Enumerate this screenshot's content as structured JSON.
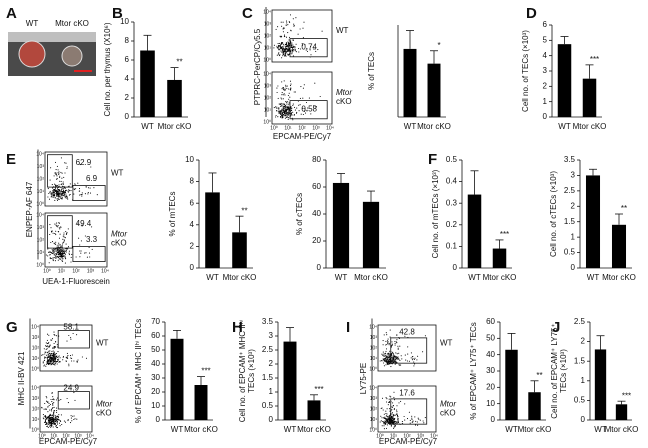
{
  "panel_labels": [
    "A",
    "B",
    "C",
    "D",
    "E",
    "F",
    "G",
    "H",
    "I",
    "J"
  ],
  "photo": {
    "samples": [
      "WT",
      "Mtor cKO"
    ]
  },
  "flow_ticks": [
    "10⁰",
    "10¹",
    "10²",
    "10³",
    "10⁴"
  ],
  "flow_plots": [
    {
      "y_label": "PTPRC-PerCP/Cy5.5",
      "x_label": "EPCAM-PE/Cy7",
      "plots": [
        {
          "gates": [
            0.74
          ],
          "sample": [
            "WT"
          ]
        },
        {
          "gates": [
            0.58
          ],
          "sample": [
            "Mtor",
            "cKO"
          ]
        }
      ]
    },
    {
      "y_label": "ENPEP-AF 647",
      "x_label": "UEA-1-Fluorescein",
      "plots": [
        {
          "gates": [
            62.9,
            6.9
          ],
          "sample": [
            "WT"
          ]
        },
        {
          "gates": [
            49.4,
            3.3
          ],
          "sample": [
            "Mtor",
            "cKO"
          ]
        }
      ]
    },
    {
      "y_label": "MHC II-BV 421",
      "x_label": "EPCAM-PE/Cy7",
      "plots": [
        {
          "gates": [
            58.1
          ],
          "sample": [
            "WT"
          ]
        },
        {
          "gates": [
            24.9
          ],
          "sample": [
            "Mtor",
            "cKO"
          ]
        }
      ]
    },
    {
      "y_label": "LY75-PE",
      "x_label": "EPCAM-PE/Cy7",
      "plots": [
        {
          "gates": [
            42.8
          ],
          "sample": [
            "WT"
          ]
        },
        {
          "gates": [
            17.6
          ],
          "sample": [
            "Mtor",
            "cKO"
          ]
        }
      ]
    }
  ],
  "chart_data": [
    {
      "type": "bar",
      "ylabel": "Cell no. per thymus (X10⁶)",
      "categories": [
        "WT",
        "Mtor cKO"
      ],
      "values": [
        7.0,
        3.9
      ],
      "errors": [
        1.6,
        1.3
      ],
      "annotation": "**",
      "color": "#000000",
      "ylim": [
        0,
        10
      ],
      "yticks": [
        0,
        2,
        4,
        6,
        8,
        10
      ]
    },
    {
      "type": "bar",
      "ylabel": "% of TECs",
      "categories": [
        "WT",
        "Mtor cKO"
      ],
      "values": [
        0.74,
        0.58
      ],
      "errors": [
        0.2,
        0.14
      ],
      "annotation": "*",
      "color": "#000000",
      "ylim": [
        0,
        1
      ]
    },
    {
      "type": "bar",
      "ylabel": "Cell no. of TECs (×10³)",
      "categories": [
        "WT",
        "Mtor cKO"
      ],
      "values": [
        4.75,
        2.5
      ],
      "errors": [
        0.5,
        0.9
      ],
      "annotation": "***",
      "color": "#000000",
      "ylim": [
        0,
        6
      ],
      "yticks": [
        0,
        1,
        2,
        3,
        4,
        5,
        6
      ]
    },
    {
      "type": "bar",
      "ylabel": "% of mTECs",
      "categories": [
        "WT",
        "Mtor cKO"
      ],
      "values": [
        7.0,
        3.3
      ],
      "errors": [
        1.8,
        1.5
      ],
      "annotation": "**",
      "color": "#000000",
      "ylim": [
        0,
        10
      ],
      "yticks": [
        0,
        2,
        4,
        6,
        8,
        10
      ]
    },
    {
      "type": "bar",
      "ylabel": "% of cTECs",
      "categories": [
        "WT",
        "Mtor cKO"
      ],
      "values": [
        63,
        49
      ],
      "errors": [
        7,
        8
      ],
      "color": "#000000",
      "ylim": [
        0,
        80
      ],
      "yticks": [
        0,
        20,
        40,
        60,
        80
      ]
    },
    {
      "type": "bar",
      "ylabel": "Cell no. of mTECs (×10³)",
      "categories": [
        "WT",
        "Mtor cKO"
      ],
      "values": [
        0.34,
        0.09
      ],
      "errors": [
        0.11,
        0.04
      ],
      "annotation": "***",
      "color": "#000000",
      "ylim": [
        0,
        0.5
      ],
      "yticks": [
        0,
        0.1,
        0.2,
        0.3,
        0.4,
        0.5
      ]
    },
    {
      "type": "bar",
      "ylabel": "Cell no. of cTECs (×10³)",
      "categories": [
        "WT",
        "Mtor cKO"
      ],
      "values": [
        3.0,
        1.4
      ],
      "errors": [
        0.2,
        0.35
      ],
      "annotation": "**",
      "color": "#000000",
      "ylim": [
        0,
        3.5
      ],
      "yticks": [
        0,
        0.5,
        1,
        1.5,
        2,
        2.5,
        3,
        3.5
      ]
    },
    {
      "type": "bar",
      "ylabel": "% of EPCAM⁺ MHC IIʰⁱ TECs",
      "categories": [
        "WT",
        "Mtor cKO"
      ],
      "values": [
        58,
        25
      ],
      "errors": [
        6,
        6
      ],
      "annotation": "***",
      "color": "#000000",
      "ylim": [
        0,
        70
      ],
      "yticks": [
        0,
        10,
        20,
        30,
        40,
        50,
        60,
        70
      ]
    },
    {
      "type": "bar",
      "ylabel": [
        "Cell no. of EPCAM⁺ MHC IIʰⁱ",
        "TECs (×10³)"
      ],
      "categories": [
        "WT",
        "Mtor cKO"
      ],
      "values": [
        2.8,
        0.7
      ],
      "errors": [
        0.5,
        0.2
      ],
      "annotation": "***",
      "color": "#000000",
      "ylim": [
        0,
        3.5
      ],
      "yticks": [
        0,
        0.5,
        1,
        1.5,
        2,
        2.5,
        3,
        3.5
      ]
    },
    {
      "type": "bar",
      "ylabel": "% of EPCAM⁺ LY75⁺ TECs",
      "categories": [
        "WT",
        "Mtor cKO"
      ],
      "values": [
        43,
        17
      ],
      "errors": [
        10,
        7
      ],
      "annotation": "**",
      "color": "#000000",
      "ylim": [
        0,
        60
      ],
      "yticks": [
        0,
        10,
        20,
        30,
        40,
        50,
        60
      ]
    },
    {
      "type": "bar",
      "ylabel": [
        "Cell no. of EPCAM⁺ LY75⁺",
        "TECs (×10³)"
      ],
      "categories": [
        "WT",
        "Mtor cKO"
      ],
      "values": [
        1.8,
        0.4
      ],
      "errors": [
        0.35,
        0.08
      ],
      "annotation": "***",
      "color": "#000000",
      "ylim": [
        0,
        2.5
      ],
      "yticks": [
        0,
        0.5,
        1,
        1.5,
        2,
        2.5
      ]
    }
  ]
}
